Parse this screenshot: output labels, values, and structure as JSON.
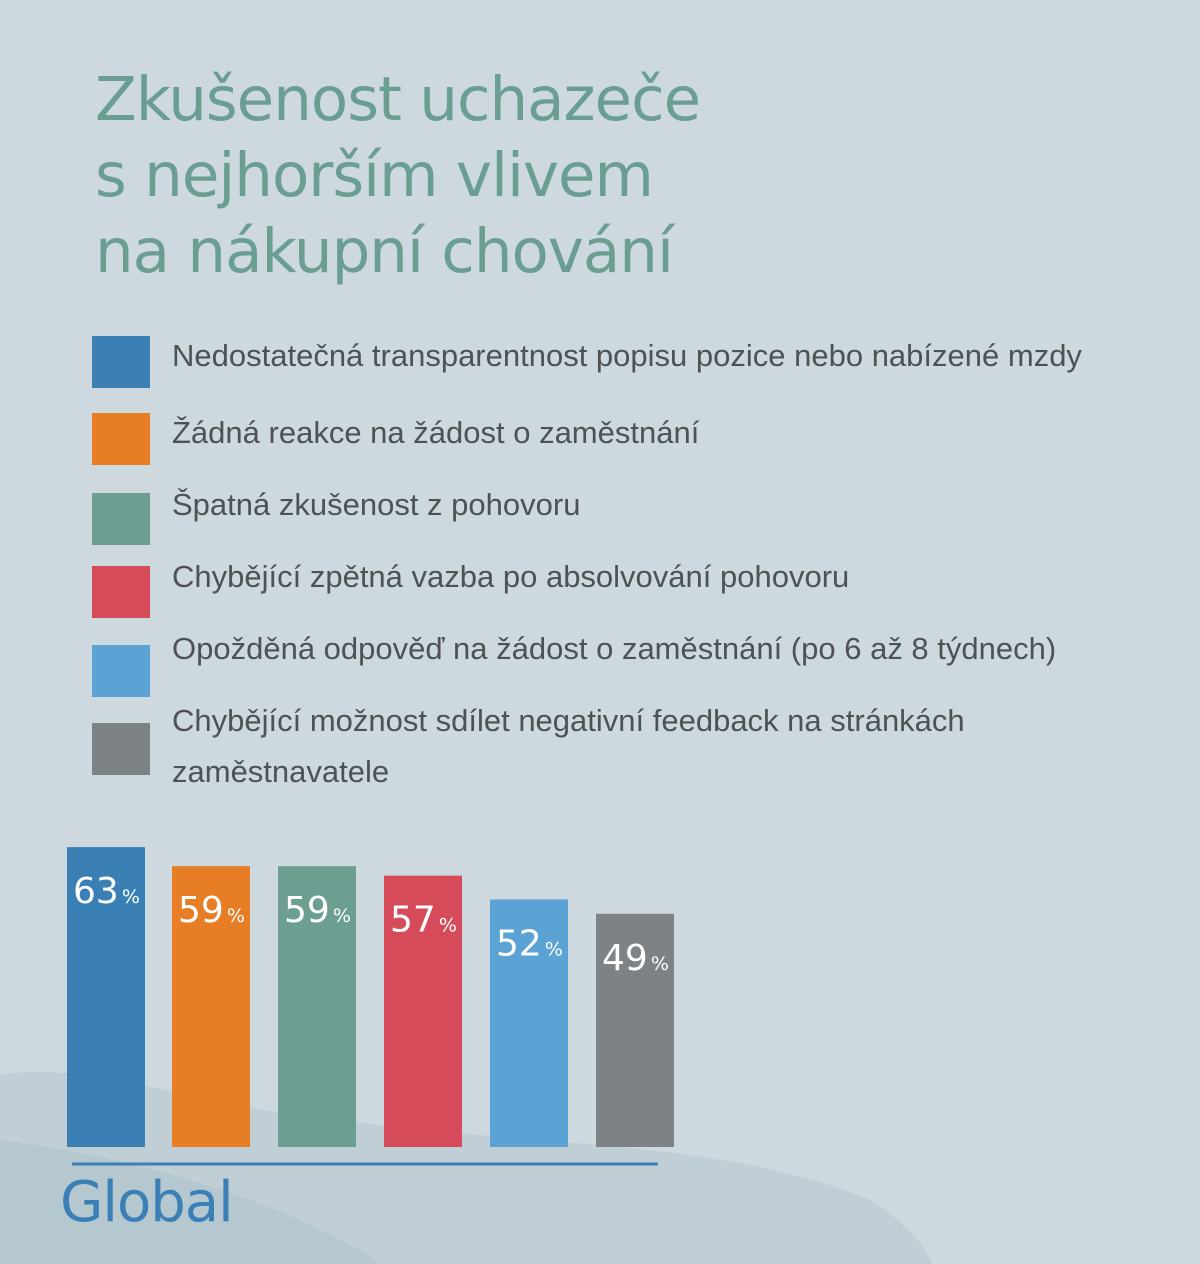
{
  "title": "Zkušenost uchazeče\ns nejhorším vlivem\nna nákupní chování",
  "legend": [
    {
      "label": "Nedostatečná transparentnost popisu pozice nebo nabízené mzdy",
      "color": "#3b80b5"
    },
    {
      "label": "Žádná reakce na žádost o zaměstnání",
      "color": "#e77d24"
    },
    {
      "label": "Špatná zkušenost z pohovoru",
      "color": "#6c9e92"
    },
    {
      "label": "Chybějící zpětná vazba po absolvování pohovoru",
      "color": "#d64b5a"
    },
    {
      "label": "Opožděná odpověď na žádost o zaměstnání (po 6 až 8 týdnech)",
      "color": "#5ba3d4"
    },
    {
      "label": "Chybějící možnost sdílet negativní feedback na stránkách zaměstnavatele",
      "color": "#7d8286"
    }
  ],
  "chart_data": {
    "type": "bar",
    "categories": [
      "Global"
    ],
    "series": [
      {
        "name": "Nedostatečná transparentnost popisu pozice nebo nabízené mzdy",
        "values": [
          63
        ],
        "color": "#3b80b5"
      },
      {
        "name": "Žádná reakce na žádost o zaměstnání",
        "values": [
          59
        ],
        "color": "#e77d24"
      },
      {
        "name": "Špatná zkušenost z pohovoru",
        "values": [
          59
        ],
        "color": "#6c9e92"
      },
      {
        "name": "Chybějící zpětná vazba po absolvování pohovoru",
        "values": [
          57
        ],
        "color": "#d64b5a"
      },
      {
        "name": "Opožděná odpověď na žádost o zaměstnání (po 6 až 8 týdnech)",
        "values": [
          52
        ],
        "color": "#5ba3d4"
      },
      {
        "name": "Chybějící možnost sdílet negativní feedback na stránkách zaměstnavatele",
        "values": [
          49
        ],
        "color": "#7d8286"
      }
    ],
    "value_suffix": "%",
    "title": "Zkušenost uchazeče s nejhorším vlivem na nákupní chování",
    "xlabel": "Global",
    "ylabel": "",
    "grid": false,
    "legend_position": "top"
  },
  "axis": {
    "category_label": "Global"
  }
}
